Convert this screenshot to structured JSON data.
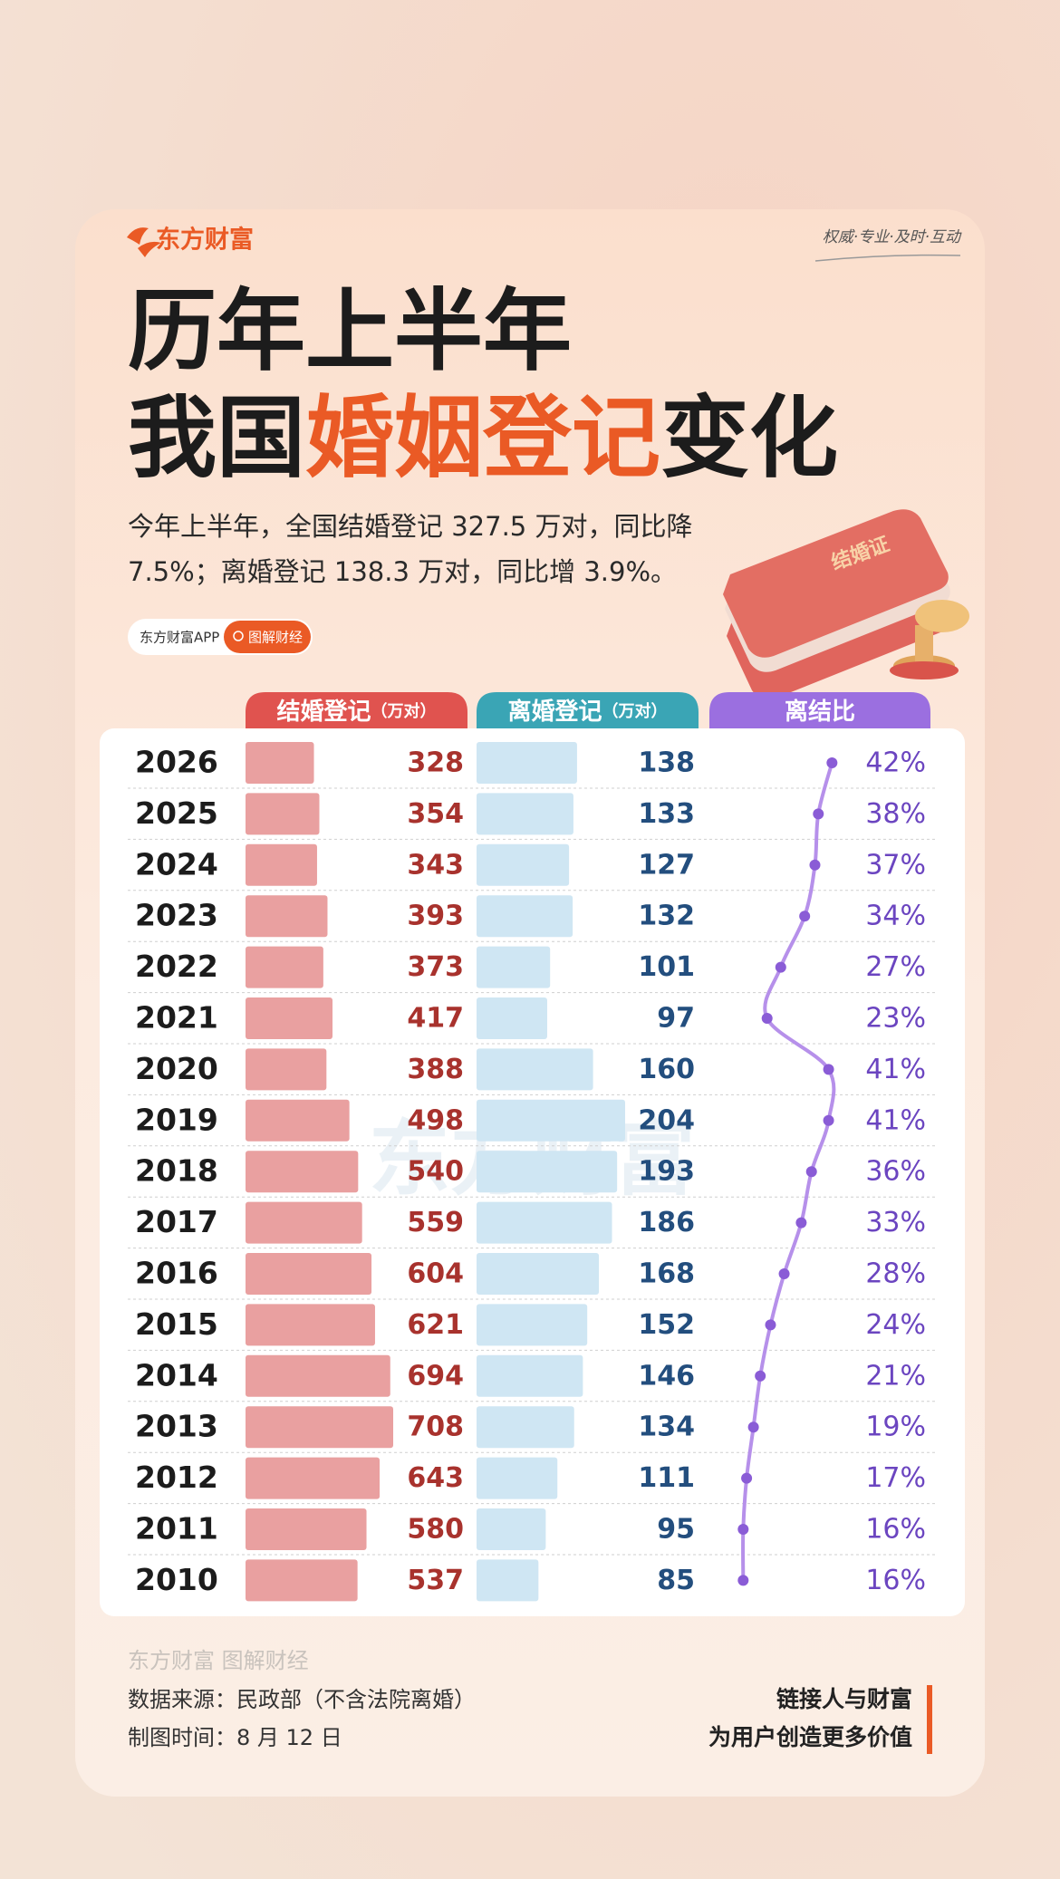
{
  "brand": "东方财富",
  "slogan": "权威·专业·及时·互动",
  "title_line1": "历年上半年",
  "title_line2": [
    "我国",
    "婚姻登记",
    "变化"
  ],
  "subtitle": [
    "今年上半年，全国结婚登记 327.5 万对，同比降",
    "7.5%；离婚登记 138.3 万对，同比增 3.9%。"
  ],
  "tags": [
    "东方财富APP",
    "图解财经"
  ],
  "illustration_label": "结婚证",
  "chart_data": {
    "type": "bar",
    "categories": [
      "2026",
      "2025",
      "2024",
      "2023",
      "2022",
      "2021",
      "2020",
      "2019",
      "2018",
      "2017",
      "2016",
      "2015",
      "2014",
      "2013",
      "2012",
      "2011",
      "2010"
    ],
    "watermark": "东方财富",
    "series": [
      {
        "name": "结婚登记",
        "unit": "（万对）",
        "color": "#e9a0a0",
        "values": [
          328,
          354,
          343,
          393,
          373,
          417,
          388,
          498,
          540,
          559,
          604,
          621,
          694,
          708,
          643,
          580,
          537
        ]
      },
      {
        "name": "离婚登记",
        "unit": "（万对）",
        "color": "#cfe6f3",
        "values": [
          138,
          133,
          127,
          132,
          101,
          97,
          160,
          204,
          193,
          186,
          168,
          152,
          146,
          134,
          111,
          95,
          85
        ]
      },
      {
        "name": "离结比",
        "color": "#b690ea",
        "values": [
          42,
          38,
          37,
          34,
          27,
          23,
          41,
          41,
          36,
          33,
          28,
          24,
          21,
          19,
          17,
          16,
          16
        ],
        "value_labels": [
          "42%",
          "38%",
          "37%",
          "34%",
          "27%",
          "23%",
          "41%",
          "41%",
          "36%",
          "33%",
          "28%",
          "24%",
          "21%",
          "19%",
          "17%",
          "16%",
          "16%"
        ]
      }
    ]
  },
  "footer": {
    "watermark": [
      "东方财富",
      "图解财经"
    ],
    "source": "数据来源：民政部（不含法院离婚）",
    "date": "制图时间：8 月 12 日",
    "tagline": [
      "链接人与财富",
      "为用户创造更多价值"
    ]
  }
}
